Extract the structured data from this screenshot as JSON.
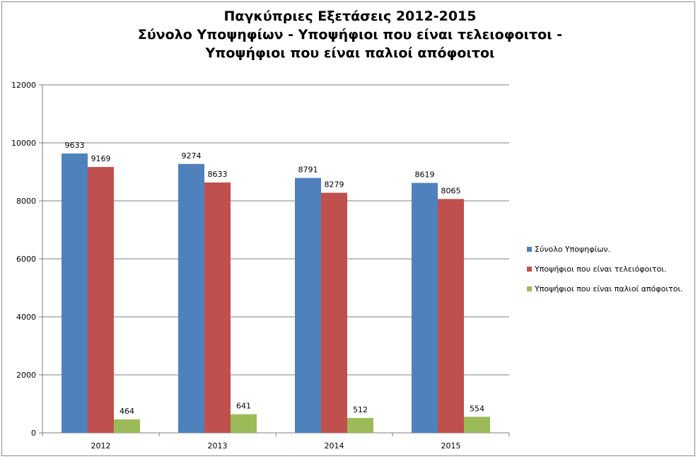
{
  "chart_data": {
    "type": "bar",
    "title_lines": [
      "Παγκύπριες Εξετάσεις 2012-2015",
      "Σύνολο Υποψηφίων - Υποψήφιοι που είναι τελειοφοιτοι -",
      "Υποψήφιοι που είναι παλιοί απόφοιτοι"
    ],
    "categories": [
      "2012",
      "2013",
      "2014",
      "2015"
    ],
    "series": [
      {
        "name": "Σύνολο Υποψηφίων.",
        "values": [
          9633,
          9274,
          8791,
          8619
        ],
        "color": "#4f81bd"
      },
      {
        "name": "Υποψήφιοι που είναι τελειόφοιτοι.",
        "values": [
          9169,
          8633,
          8279,
          8065
        ],
        "color": "#c0504d"
      },
      {
        "name": "Υποψήφιοι που είναι παλιοί απόφοιτοι.",
        "values": [
          464,
          641,
          512,
          554
        ],
        "color": "#9bbb59"
      }
    ],
    "yticks": [
      "0",
      "2000",
      "4000",
      "6000",
      "8000",
      "10000",
      "12000"
    ],
    "ylim": [
      0,
      12000
    ],
    "grid": true,
    "legend_position": "right",
    "xlabel": "",
    "ylabel": ""
  }
}
